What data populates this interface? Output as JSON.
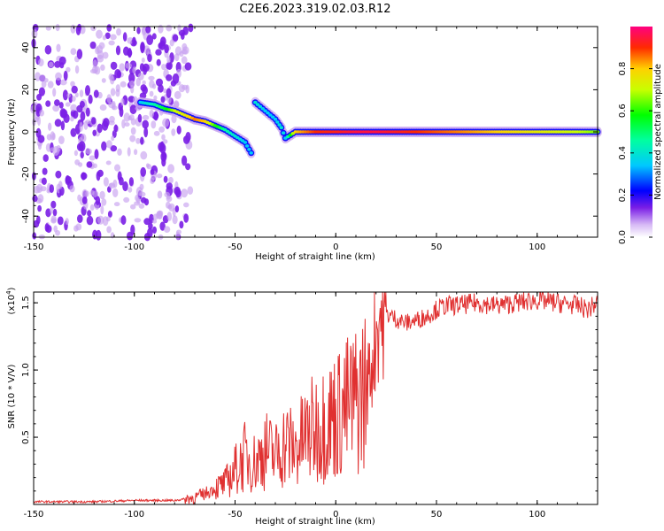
{
  "title": "C2E6.2023.319.02.03.R12",
  "colors": {
    "series": "#e03030",
    "spectrogram_weak": "#c8a2f0",
    "spectrogram_mid": "#7a1ee6"
  },
  "chart_data": [
    {
      "type": "heatmap",
      "xlabel": "Height of straight line (km)",
      "ylabel": "Frequency (Hz)",
      "xlim": [
        -150,
        130
      ],
      "ylim": [
        -50,
        50
      ],
      "xticks": [
        -150,
        -100,
        -50,
        0,
        50,
        100
      ],
      "yticks": [
        -40,
        -20,
        0,
        20,
        40
      ],
      "grid": false,
      "trace": [
        {
          "x": -97,
          "y": 14,
          "amp": 0.35
        },
        {
          "x": -90,
          "y": 13,
          "amp": 0.45
        },
        {
          "x": -85,
          "y": 11,
          "amp": 0.55
        },
        {
          "x": -80,
          "y": 10,
          "amp": 0.7
        },
        {
          "x": -75,
          "y": 8,
          "amp": 0.75
        },
        {
          "x": -70,
          "y": 6,
          "amp": 0.85
        },
        {
          "x": -65,
          "y": 5,
          "amp": 0.8
        },
        {
          "x": -60,
          "y": 3,
          "amp": 0.6
        },
        {
          "x": -55,
          "y": 1,
          "amp": 0.45
        },
        {
          "x": -50,
          "y": -2,
          "amp": 0.4
        },
        {
          "x": -45,
          "y": -5,
          "amp": 0.35
        },
        {
          "x": -42,
          "y": -10,
          "amp": 0.35
        },
        {
          "x": -40,
          "y": 14,
          "amp": 0.4
        },
        {
          "x": -35,
          "y": 10,
          "amp": 0.35
        },
        {
          "x": -30,
          "y": 6,
          "amp": 0.35
        },
        {
          "x": -27,
          "y": 2,
          "amp": 0.4
        },
        {
          "x": -25,
          "y": -3,
          "amp": 0.35
        },
        {
          "x": -20,
          "y": 0,
          "amp": 0.8
        },
        {
          "x": -10,
          "y": 0,
          "amp": 0.9
        },
        {
          "x": 0,
          "y": 0,
          "amp": 0.92
        },
        {
          "x": 10,
          "y": 0,
          "amp": 0.95
        },
        {
          "x": 20,
          "y": 0,
          "amp": 0.95
        },
        {
          "x": 40,
          "y": 0,
          "amp": 0.9
        },
        {
          "x": 60,
          "y": 0,
          "amp": 0.85
        },
        {
          "x": 80,
          "y": 0,
          "amp": 0.8
        },
        {
          "x": 100,
          "y": 0,
          "amp": 0.75
        },
        {
          "x": 120,
          "y": 0,
          "amp": 0.7
        },
        {
          "x": 130,
          "y": 0,
          "amp": 0.65
        }
      ],
      "noise_region_x": [
        -150,
        -75
      ],
      "colorbar": {
        "label": "Normalized spectral amplitude",
        "range": [
          0,
          1
        ],
        "ticks": [
          "0.0",
          "0.2",
          "0.4",
          "0.6",
          "0.8"
        ]
      }
    },
    {
      "type": "line",
      "xlabel": "Height of straight line (km)",
      "ylabel": "SNR (10 * V/V)",
      "yexp": "(x10",
      "yexp_power": "4",
      "yexp_close": ")",
      "xlim": [
        -150,
        130
      ],
      "ylim": [
        0,
        1.58
      ],
      "xticks": [
        -150,
        -100,
        -50,
        0,
        50,
        100
      ],
      "yticks": [
        0.5,
        1.0,
        1.5
      ],
      "ytick_labels": [
        "0.5",
        "1.0",
        "1.5"
      ],
      "grid": false,
      "series": [
        {
          "x": [
            -150,
            -120,
            -100,
            -80,
            -70,
            -65,
            -60,
            -55,
            -50,
            -45,
            -40,
            -35,
            -30,
            -25,
            -20,
            -15,
            -10,
            -5,
            0,
            5,
            10,
            15,
            18,
            20,
            22,
            25,
            30,
            35,
            40,
            45,
            50,
            55,
            60,
            70,
            80,
            90,
            100,
            110,
            120,
            125,
            130
          ],
          "values": [
            0.02,
            0.02,
            0.03,
            0.03,
            0.05,
            0.08,
            0.12,
            0.15,
            0.25,
            0.35,
            0.3,
            0.4,
            0.35,
            0.45,
            0.4,
            0.5,
            0.55,
            0.6,
            0.65,
            0.7,
            0.75,
            0.85,
            1.05,
            1.3,
            1.4,
            1.42,
            1.38,
            1.35,
            1.37,
            1.4,
            1.45,
            1.48,
            1.48,
            1.5,
            1.48,
            1.5,
            1.52,
            1.5,
            1.48,
            1.45,
            1.5
          ]
        }
      ]
    }
  ]
}
